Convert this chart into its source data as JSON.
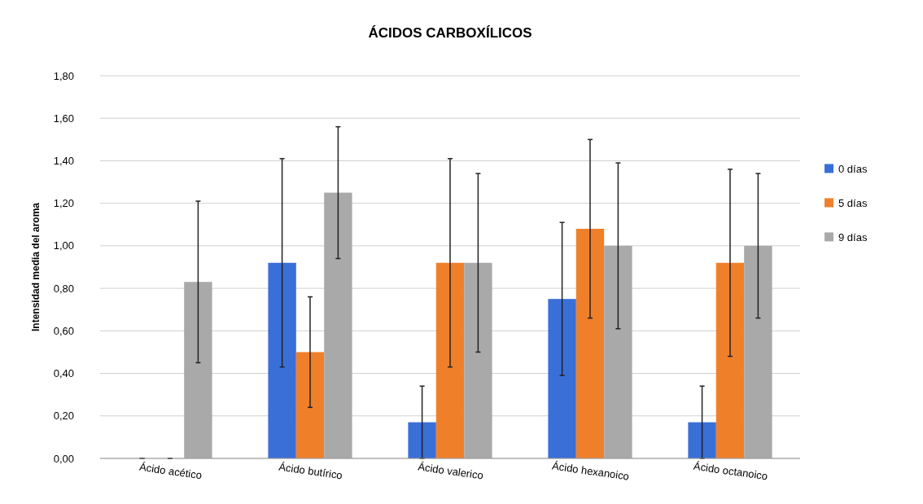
{
  "chart_data": {
    "type": "bar",
    "title": "ÁCIDOS CARBOXÍLICOS",
    "ylabel": "Intensidad media del aroma",
    "categories": [
      "Ácido acético",
      "Ácido butírico",
      "Ácido valerico",
      "Ácido hexanoico",
      "Ácido octanoico"
    ],
    "series": [
      {
        "name": "0 días",
        "color": "#3a6fd8",
        "values": [
          0,
          0.92,
          0.17,
          0.75,
          0.17
        ],
        "errors": [
          0,
          0.49,
          0.17,
          0.36,
          0.17
        ]
      },
      {
        "name": "5 días",
        "color": "#f07f2a",
        "values": [
          0,
          0.5,
          0.92,
          1.08,
          0.92
        ],
        "errors": [
          0,
          0.26,
          0.49,
          0.42,
          0.44
        ]
      },
      {
        "name": "9 días",
        "color": "#a9a9a9",
        "values": [
          0.83,
          1.25,
          0.92,
          1.0,
          1.0
        ],
        "errors": [
          0.38,
          0.31,
          0.42,
          0.39,
          0.34
        ]
      }
    ],
    "ylim": [
      0,
      1.8
    ],
    "yticks": [
      {
        "value": 0,
        "label": "0,00"
      },
      {
        "value": 0.2,
        "label": "0,20"
      },
      {
        "value": 0.4,
        "label": "0,40"
      },
      {
        "value": 0.6,
        "label": "0,60"
      },
      {
        "value": 0.8,
        "label": "0,80"
      },
      {
        "value": 1.0,
        "label": "1,00"
      },
      {
        "value": 1.2,
        "label": "1,20"
      },
      {
        "value": 1.4,
        "label": "1,40"
      },
      {
        "value": 1.6,
        "label": "1,60"
      },
      {
        "value": 1.8,
        "label": "1,80"
      }
    ],
    "grid": "y",
    "legend": "right"
  }
}
